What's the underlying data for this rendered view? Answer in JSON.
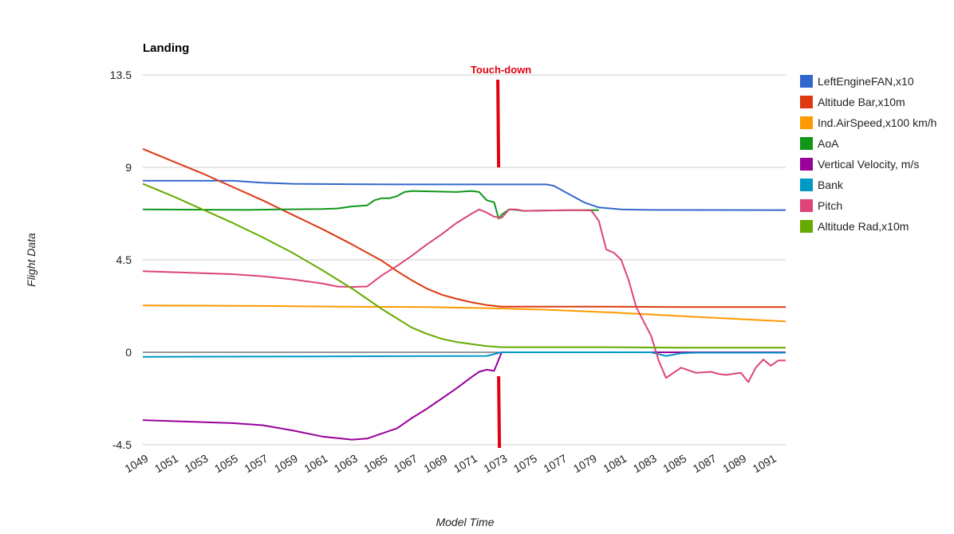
{
  "chart_data": {
    "type": "line",
    "title": "Landing",
    "xlabel": "Model Time",
    "ylabel": "Flight Data",
    "xlim": [
      1049,
      1092
    ],
    "ylim": [
      -4.5,
      13.5
    ],
    "yticks": [
      "13.5",
      "9",
      "4.5",
      "0",
      "-4.5"
    ],
    "ytick_values": [
      13.5,
      9,
      4.5,
      0,
      -4.5
    ],
    "xticks": [
      "1049",
      "1051",
      "1053",
      "1055",
      "1057",
      "1059",
      "1061",
      "1063",
      "1065",
      "1067",
      "1069",
      "1071",
      "1073",
      "1075",
      "1077",
      "1079",
      "1081",
      "1083",
      "1085",
      "1087",
      "1089",
      "1091"
    ],
    "xtick_values": [
      1049,
      1051,
      1053,
      1055,
      1057,
      1059,
      1061,
      1063,
      1065,
      1067,
      1069,
      1071,
      1073,
      1075,
      1077,
      1079,
      1081,
      1083,
      1085,
      1087,
      1089,
      1091
    ],
    "grid": true,
    "legend_position": "right",
    "annotation": {
      "text": "Touch-down",
      "x": 1072.8,
      "color": "#e3000f"
    },
    "series": [
      {
        "name": "LeftEngineFAN,x10",
        "color": "#3366cc",
        "points": [
          [
            1049,
            8.35
          ],
          [
            1055,
            8.35
          ],
          [
            1057,
            8.25
          ],
          [
            1059,
            8.2
          ],
          [
            1063,
            8.18
          ],
          [
            1066,
            8.17
          ],
          [
            1072,
            8.17
          ],
          [
            1076,
            8.17
          ],
          [
            1076.5,
            8.1
          ],
          [
            1077.5,
            7.7
          ],
          [
            1078.5,
            7.3
          ],
          [
            1079.5,
            7.05
          ],
          [
            1081,
            6.95
          ],
          [
            1083,
            6.93
          ],
          [
            1092,
            6.92
          ]
        ]
      },
      {
        "name": "Altitude Bar,x10m",
        "color": "#dc3912",
        "points": [
          [
            1049,
            9.9
          ],
          [
            1051,
            9.3
          ],
          [
            1053,
            8.7
          ],
          [
            1055,
            8.05
          ],
          [
            1057,
            7.4
          ],
          [
            1059,
            6.7
          ],
          [
            1061,
            6.0
          ],
          [
            1063,
            5.25
          ],
          [
            1065,
            4.45
          ],
          [
            1066,
            3.95
          ],
          [
            1067,
            3.5
          ],
          [
            1068,
            3.1
          ],
          [
            1069,
            2.8
          ],
          [
            1070,
            2.6
          ],
          [
            1071,
            2.43
          ],
          [
            1072,
            2.3
          ],
          [
            1073,
            2.22
          ],
          [
            1080,
            2.22
          ],
          [
            1085,
            2.2
          ],
          [
            1092,
            2.2
          ]
        ]
      },
      {
        "name": "Ind.AirSpeed,x100 km/h",
        "color": "#ff9900",
        "points": [
          [
            1049,
            2.28
          ],
          [
            1058,
            2.25
          ],
          [
            1062,
            2.22
          ],
          [
            1068,
            2.2
          ],
          [
            1072,
            2.15
          ],
          [
            1076,
            2.07
          ],
          [
            1080,
            1.95
          ],
          [
            1084,
            1.8
          ],
          [
            1088,
            1.65
          ],
          [
            1092,
            1.5
          ]
        ]
      },
      {
        "name": "AoA",
        "color": "#109618",
        "points": [
          [
            1049,
            6.95
          ],
          [
            1056,
            6.93
          ],
          [
            1058,
            6.95
          ],
          [
            1061,
            6.97
          ],
          [
            1062,
            7.0
          ],
          [
            1063,
            7.1
          ],
          [
            1064,
            7.15
          ],
          [
            1064.5,
            7.4
          ],
          [
            1065,
            7.5
          ],
          [
            1065.5,
            7.5
          ],
          [
            1066,
            7.6
          ],
          [
            1066.5,
            7.8
          ],
          [
            1067,
            7.85
          ],
          [
            1070,
            7.8
          ],
          [
            1071,
            7.85
          ],
          [
            1071.5,
            7.8
          ],
          [
            1072,
            7.4
          ],
          [
            1072.5,
            7.3
          ],
          [
            1072.8,
            6.5
          ],
          [
            1073,
            6.7
          ],
          [
            1073.5,
            6.95
          ],
          [
            1074,
            6.93
          ],
          [
            1074.5,
            6.88
          ],
          [
            1076,
            6.9
          ],
          [
            1078,
            6.92
          ],
          [
            1079.5,
            6.92
          ]
        ]
      },
      {
        "name": "Vertical Velocity, m/s",
        "color": "#990099",
        "points": [
          [
            1049,
            -3.3
          ],
          [
            1053,
            -3.4
          ],
          [
            1055,
            -3.45
          ],
          [
            1057,
            -3.55
          ],
          [
            1059,
            -3.8
          ],
          [
            1061,
            -4.1
          ],
          [
            1063,
            -4.25
          ],
          [
            1064,
            -4.2
          ],
          [
            1065,
            -3.95
          ],
          [
            1066,
            -3.7
          ],
          [
            1067,
            -3.2
          ],
          [
            1068,
            -2.75
          ],
          [
            1069,
            -2.25
          ],
          [
            1070,
            -1.75
          ],
          [
            1071,
            -1.2
          ],
          [
            1071.5,
            -0.95
          ],
          [
            1072,
            -0.85
          ],
          [
            1072.5,
            -0.9
          ],
          [
            1073,
            0.0
          ],
          [
            1076,
            0.0
          ],
          [
            1092,
            0.0
          ]
        ]
      },
      {
        "name": "Bank",
        "color": "#0099c6",
        "points": [
          [
            1049,
            -0.22
          ],
          [
            1060,
            -0.2
          ],
          [
            1072,
            -0.18
          ],
          [
            1073,
            0.0
          ],
          [
            1083,
            0.0
          ],
          [
            1084,
            -0.18
          ],
          [
            1085,
            -0.05
          ],
          [
            1086,
            -0.02
          ],
          [
            1092,
            -0.02
          ]
        ]
      },
      {
        "name": "Pitch",
        "color": "#dd4477",
        "points": [
          [
            1049,
            3.95
          ],
          [
            1051,
            3.9
          ],
          [
            1053,
            3.85
          ],
          [
            1055,
            3.8
          ],
          [
            1057,
            3.7
          ],
          [
            1059,
            3.55
          ],
          [
            1061,
            3.35
          ],
          [
            1062,
            3.2
          ],
          [
            1063,
            3.18
          ],
          [
            1064,
            3.2
          ],
          [
            1065,
            3.75
          ],
          [
            1066,
            4.2
          ],
          [
            1067,
            4.7
          ],
          [
            1068,
            5.25
          ],
          [
            1069,
            5.75
          ],
          [
            1070,
            6.3
          ],
          [
            1071,
            6.75
          ],
          [
            1071.5,
            6.95
          ],
          [
            1072,
            6.8
          ],
          [
            1072.5,
            6.6
          ],
          [
            1073,
            6.55
          ],
          [
            1073.5,
            6.95
          ],
          [
            1074,
            6.95
          ],
          [
            1074.5,
            6.88
          ],
          [
            1076,
            6.9
          ],
          [
            1078,
            6.92
          ],
          [
            1079,
            6.9
          ],
          [
            1079.5,
            6.4
          ],
          [
            1080,
            5.0
          ],
          [
            1080.5,
            4.85
          ],
          [
            1081,
            4.5
          ],
          [
            1081.5,
            3.5
          ],
          [
            1082,
            2.2
          ],
          [
            1082.5,
            1.5
          ],
          [
            1083,
            0.8
          ],
          [
            1083.5,
            -0.4
          ],
          [
            1084,
            -1.25
          ],
          [
            1085,
            -0.75
          ],
          [
            1086,
            -1.0
          ],
          [
            1087,
            -0.95
          ],
          [
            1087.5,
            -1.05
          ],
          [
            1088,
            -1.1
          ],
          [
            1089,
            -1.0
          ],
          [
            1089.5,
            -1.45
          ],
          [
            1090,
            -0.75
          ],
          [
            1090.5,
            -0.35
          ],
          [
            1091,
            -0.65
          ],
          [
            1091.5,
            -0.4
          ],
          [
            1092,
            -0.4
          ]
        ]
      },
      {
        "name": "Altitude Rad,x10m",
        "color": "#66aa00",
        "points": [
          [
            1049,
            8.2
          ],
          [
            1051,
            7.6
          ],
          [
            1053,
            6.95
          ],
          [
            1055,
            6.3
          ],
          [
            1057,
            5.6
          ],
          [
            1059,
            4.85
          ],
          [
            1061,
            4.0
          ],
          [
            1063,
            3.1
          ],
          [
            1064,
            2.6
          ],
          [
            1065,
            2.1
          ],
          [
            1066,
            1.65
          ],
          [
            1067,
            1.2
          ],
          [
            1068,
            0.9
          ],
          [
            1069,
            0.65
          ],
          [
            1070,
            0.5
          ],
          [
            1071,
            0.4
          ],
          [
            1072,
            0.3
          ],
          [
            1073,
            0.25
          ],
          [
            1080,
            0.25
          ],
          [
            1085,
            0.22
          ],
          [
            1092,
            0.22
          ]
        ]
      }
    ]
  }
}
